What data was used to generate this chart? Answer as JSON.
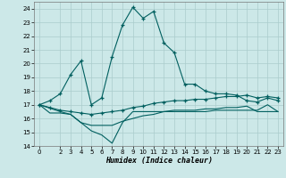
{
  "xlabel": "Humidex (Indice chaleur)",
  "background_color": "#cce8e8",
  "grid_color": "#aacccc",
  "line_color": "#005f5f",
  "xlim": [
    -0.5,
    23.5
  ],
  "ylim": [
    14,
    24.5
  ],
  "yticks": [
    14,
    15,
    16,
    17,
    18,
    19,
    20,
    21,
    22,
    23,
    24
  ],
  "xticks": [
    0,
    2,
    3,
    4,
    5,
    6,
    7,
    8,
    9,
    10,
    11,
    12,
    13,
    14,
    15,
    16,
    17,
    18,
    19,
    20,
    21,
    22,
    23
  ],
  "s1_x": [
    0,
    1,
    2,
    3,
    4,
    5,
    6,
    7,
    8,
    9,
    10,
    11,
    12,
    13,
    14,
    15,
    16,
    17,
    18,
    19,
    20,
    21,
    22,
    23
  ],
  "s1_y": [
    17.0,
    17.3,
    17.8,
    19.2,
    20.2,
    17.0,
    17.5,
    20.5,
    22.8,
    24.1,
    23.3,
    23.8,
    21.5,
    20.8,
    18.5,
    18.5,
    18.0,
    17.8,
    17.8,
    17.7,
    17.3,
    17.2,
    17.5,
    17.3
  ],
  "s2_x": [
    0,
    1,
    2,
    3,
    4,
    5,
    6,
    7,
    8,
    9,
    10,
    11,
    12,
    13,
    14,
    15,
    16,
    17,
    18,
    19,
    20,
    21,
    22,
    23
  ],
  "s2_y": [
    17.0,
    16.4,
    16.4,
    16.3,
    15.7,
    15.5,
    15.5,
    15.5,
    15.8,
    16.0,
    16.2,
    16.3,
    16.5,
    16.6,
    16.6,
    16.6,
    16.7,
    16.7,
    16.8,
    16.8,
    16.9,
    16.5,
    16.5,
    16.5
  ],
  "s3_x": [
    0,
    1,
    2,
    3,
    4,
    5,
    6,
    7,
    8,
    9,
    10,
    11,
    12,
    13,
    14,
    15,
    16,
    17,
    18,
    19,
    20,
    21,
    22,
    23
  ],
  "s3_y": [
    17.0,
    16.8,
    16.6,
    16.5,
    16.4,
    16.3,
    16.4,
    16.5,
    16.6,
    16.8,
    16.9,
    17.1,
    17.2,
    17.3,
    17.3,
    17.4,
    17.4,
    17.5,
    17.6,
    17.6,
    17.7,
    17.5,
    17.6,
    17.5
  ],
  "s4_x": [
    0,
    2,
    3,
    4,
    5,
    6,
    7,
    8,
    9,
    10,
    11,
    12,
    13,
    14,
    15,
    16,
    17,
    18,
    19,
    20,
    21,
    22,
    23
  ],
  "s4_y": [
    17.0,
    16.5,
    16.3,
    15.7,
    15.1,
    14.8,
    14.2,
    15.7,
    16.5,
    16.5,
    16.5,
    16.5,
    16.5,
    16.5,
    16.5,
    16.5,
    16.6,
    16.6,
    16.6,
    16.6,
    16.6,
    17.0,
    16.5
  ]
}
